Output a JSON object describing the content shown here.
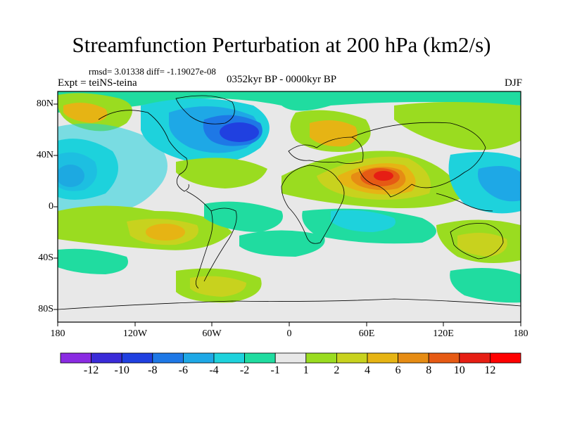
{
  "title": "Streamfunction Perturbation at 200 hPa (km2/s)",
  "stats_line": "rmsd= 3.01338 diff= -1.19027e-08",
  "experiment": "Expt = teiNS-teina",
  "period": "0352kyr BP - 0000kyr BP",
  "season": "DJF",
  "lat_labels": [
    "80N",
    "40N",
    "0",
    "40S",
    "80S"
  ],
  "lon_labels": [
    "180",
    "120W",
    "60W",
    "0",
    "60E",
    "120E",
    "180"
  ],
  "colorbar": {
    "labels": [
      "-12",
      "-10",
      "-8",
      "-6",
      "-4",
      "-2",
      "-1",
      "1",
      "2",
      "4",
      "6",
      "8",
      "10",
      "12"
    ],
    "colors": [
      "#8a2be2",
      "#3a2bd8",
      "#2040e0",
      "#1e78e6",
      "#1ea8e6",
      "#1ed2dc",
      "#20dca0",
      "#e8e8e8",
      "#9adc20",
      "#c8d21e",
      "#e6b414",
      "#e68c14",
      "#e65a14",
      "#e61e14",
      "#ff0000"
    ]
  },
  "colors": {
    "background_field": "#e8e8e8",
    "coast": "#000000"
  }
}
